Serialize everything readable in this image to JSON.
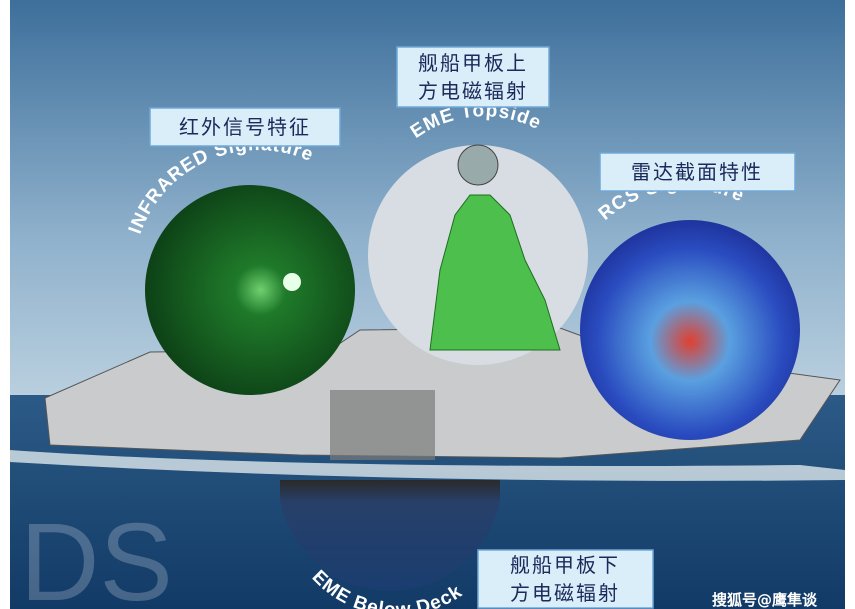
{
  "annotations": {
    "infrared": {
      "label": "红外信号特征",
      "arc_text": "INFRARED Signature"
    },
    "eme_topside": {
      "label_lines": [
        "舰船甲板上",
        "方电磁辐射"
      ],
      "arc_text": "EME Topside"
    },
    "rcs": {
      "label": "雷达截面特性",
      "arc_text": "RCS Signature"
    },
    "eme_below_deck": {
      "label_lines": [
        "舰船甲板下",
        "方电磁辐射"
      ],
      "arc_text": "EME Below Deck"
    }
  },
  "background_text": "DS",
  "watermark": "搜狐号@鹰隼谈"
}
